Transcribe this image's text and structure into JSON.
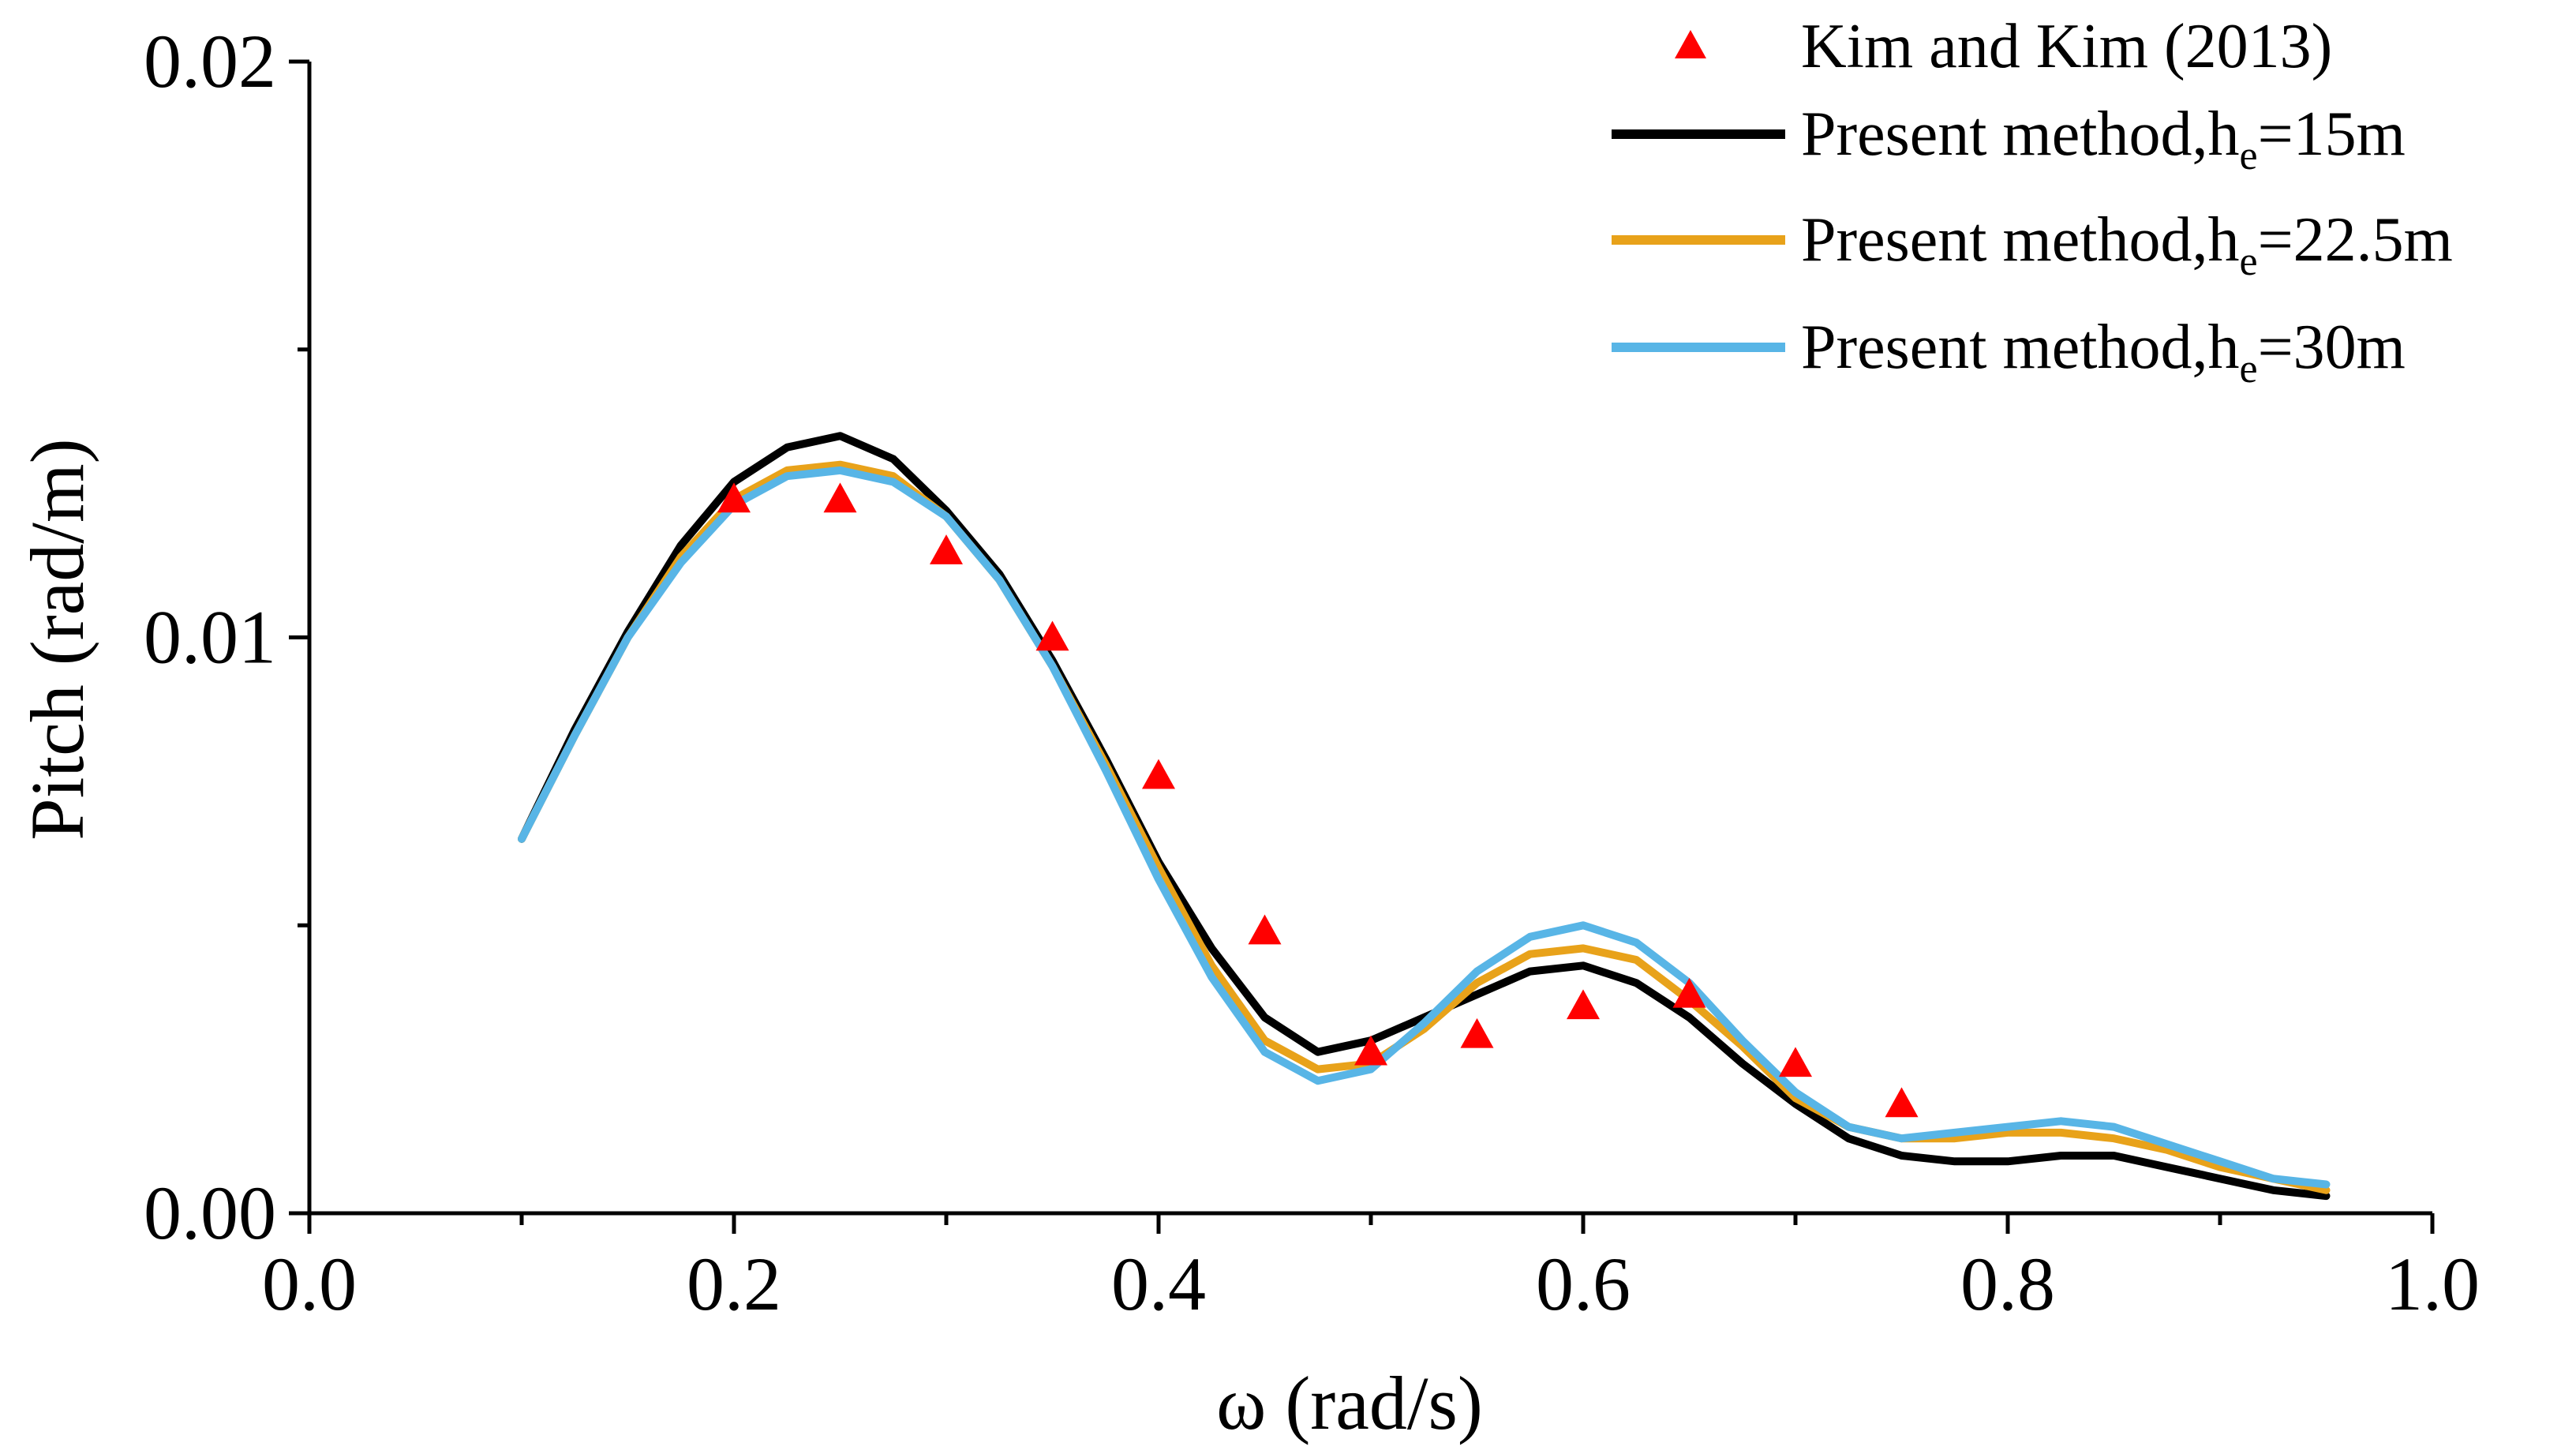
{
  "chart_data": {
    "type": "line",
    "title": "",
    "xlabel": "ω (rad/s)",
    "ylabel": "Pitch (rad/m)",
    "xlim": [
      0.0,
      1.0
    ],
    "ylim": [
      0.0,
      0.02
    ],
    "x_ticks": [
      0.0,
      0.2,
      0.4,
      0.6,
      0.8,
      1.0
    ],
    "x_tick_labels": [
      "0.0",
      "0.2",
      "0.4",
      "0.6",
      "0.8",
      "1.0"
    ],
    "y_ticks": [
      0.0,
      0.01,
      0.02
    ],
    "y_tick_labels": [
      "0.00",
      "0.01",
      "0.02"
    ],
    "grid": false,
    "legend_position": "top-right",
    "series": [
      {
        "name": "Kim and Kim (2013)",
        "kind": "scatter",
        "marker": "triangle",
        "color": "#ff0000",
        "x": [
          0.2,
          0.25,
          0.3,
          0.35,
          0.4,
          0.45,
          0.5,
          0.55,
          0.6,
          0.65,
          0.7,
          0.75
        ],
        "y": [
          0.0124,
          0.0124,
          0.0115,
          0.01,
          0.0076,
          0.0049,
          0.0028,
          0.0031,
          0.0036,
          0.0038,
          0.0026,
          0.0019
        ]
      },
      {
        "name_main": "Present method,h",
        "name_sub": "e",
        "name_suffix": "=15m",
        "kind": "line",
        "color": "#000000",
        "x": [
          0.1,
          0.125,
          0.15,
          0.175,
          0.2,
          0.225,
          0.25,
          0.275,
          0.3,
          0.325,
          0.35,
          0.375,
          0.4,
          0.425,
          0.45,
          0.475,
          0.5,
          0.525,
          0.55,
          0.575,
          0.6,
          0.625,
          0.65,
          0.675,
          0.7,
          0.725,
          0.75,
          0.775,
          0.8,
          0.825,
          0.85,
          0.875,
          0.9,
          0.925,
          0.95
        ],
        "y": [
          0.0065,
          0.0084,
          0.0101,
          0.0116,
          0.0127,
          0.0133,
          0.0135,
          0.0131,
          0.0122,
          0.0111,
          0.0096,
          0.0079,
          0.0061,
          0.0046,
          0.0034,
          0.0028,
          0.003,
          0.0034,
          0.0038,
          0.0042,
          0.0043,
          0.004,
          0.0034,
          0.0026,
          0.0019,
          0.0013,
          0.001,
          0.0009,
          0.0009,
          0.001,
          0.001,
          0.0008,
          0.0006,
          0.0004,
          0.0003
        ]
      },
      {
        "name_main": "Present method,h",
        "name_sub": "e",
        "name_suffix": "=22.5m",
        "kind": "line",
        "color": "#e8a21a",
        "x": [
          0.1,
          0.125,
          0.15,
          0.175,
          0.2,
          0.225,
          0.25,
          0.275,
          0.3,
          0.325,
          0.35,
          0.375,
          0.4,
          0.425,
          0.45,
          0.475,
          0.5,
          0.525,
          0.55,
          0.575,
          0.6,
          0.625,
          0.65,
          0.675,
          0.7,
          0.725,
          0.75,
          0.775,
          0.8,
          0.825,
          0.85,
          0.875,
          0.9,
          0.925,
          0.95
        ],
        "y": [
          0.0065,
          0.0083,
          0.01,
          0.0114,
          0.0124,
          0.0129,
          0.013,
          0.0128,
          0.0121,
          0.011,
          0.0095,
          0.0078,
          0.006,
          0.0043,
          0.003,
          0.0025,
          0.0026,
          0.0032,
          0.004,
          0.0045,
          0.0046,
          0.0044,
          0.0037,
          0.0029,
          0.002,
          0.0015,
          0.0013,
          0.0013,
          0.0014,
          0.0014,
          0.0013,
          0.0011,
          0.0008,
          0.0006,
          0.0004
        ]
      },
      {
        "name_main": "Present method,h",
        "name_sub": "e",
        "name_suffix": "=30m",
        "kind": "line",
        "color": "#58b5e6",
        "x": [
          0.1,
          0.125,
          0.15,
          0.175,
          0.2,
          0.225,
          0.25,
          0.275,
          0.3,
          0.325,
          0.35,
          0.375,
          0.4,
          0.425,
          0.45,
          0.475,
          0.5,
          0.525,
          0.55,
          0.575,
          0.6,
          0.625,
          0.65,
          0.675,
          0.7,
          0.725,
          0.75,
          0.775,
          0.8,
          0.825,
          0.85,
          0.875,
          0.9,
          0.925,
          0.95
        ],
        "y": [
          0.0065,
          0.0083,
          0.01,
          0.0113,
          0.0123,
          0.0128,
          0.0129,
          0.0127,
          0.0121,
          0.011,
          0.0095,
          0.0077,
          0.0058,
          0.0041,
          0.0028,
          0.0023,
          0.0025,
          0.0033,
          0.0042,
          0.0048,
          0.005,
          0.0047,
          0.004,
          0.003,
          0.0021,
          0.0015,
          0.0013,
          0.0014,
          0.0015,
          0.0016,
          0.0015,
          0.0012,
          0.0009,
          0.0006,
          0.0005
        ]
      }
    ]
  }
}
